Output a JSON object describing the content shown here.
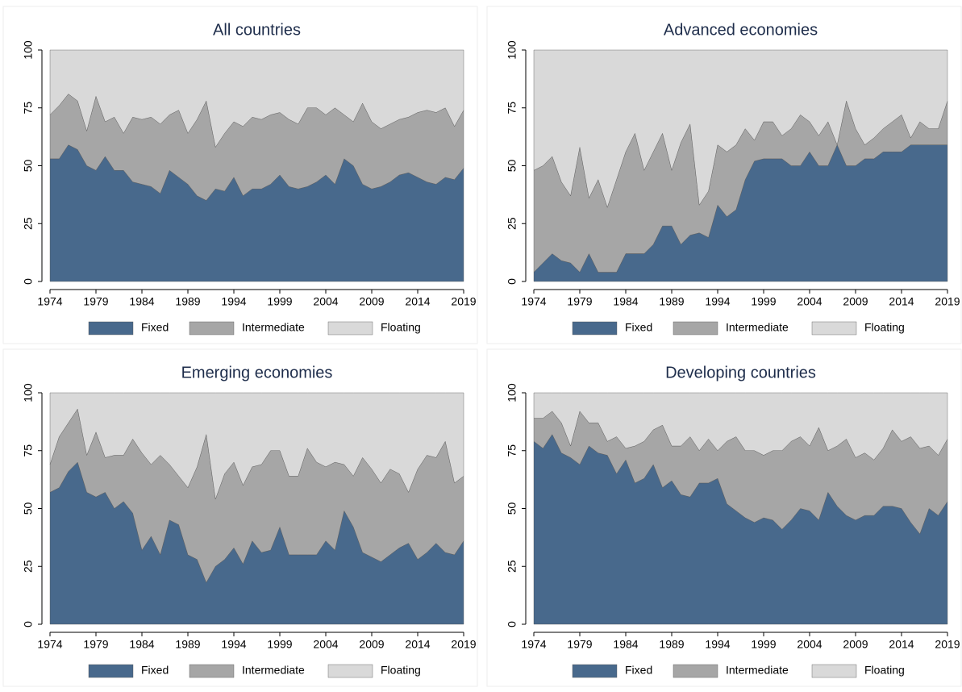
{
  "chart_data": [
    {
      "type": "area",
      "title": "All countries",
      "x": [
        1974,
        1975,
        1976,
        1977,
        1978,
        1979,
        1980,
        1981,
        1982,
        1983,
        1984,
        1985,
        1986,
        1987,
        1988,
        1989,
        1990,
        1991,
        1992,
        1993,
        1994,
        1995,
        1996,
        1997,
        1998,
        1999,
        2000,
        2001,
        2002,
        2003,
        2004,
        2005,
        2006,
        2007,
        2008,
        2009,
        2010,
        2011,
        2012,
        2013,
        2014,
        2015,
        2016,
        2017,
        2018,
        2019
      ],
      "series": [
        {
          "name": "Fixed",
          "color": "#48698c",
          "values": [
            53,
            53,
            59,
            57,
            50,
            48,
            54,
            48,
            48,
            43,
            42,
            41,
            38,
            48,
            45,
            42,
            37,
            35,
            40,
            39,
            45,
            37,
            40,
            40,
            42,
            46,
            41,
            40,
            41,
            43,
            46,
            42,
            53,
            50,
            42,
            40,
            41,
            43,
            46,
            47,
            45,
            43,
            42,
            45,
            44,
            49
          ]
        },
        {
          "name": "Intermediate",
          "color": "#a6a6a6",
          "values": [
            19,
            23,
            22,
            21,
            15,
            32,
            15,
            23,
            16,
            28,
            28,
            30,
            30,
            24,
            29,
            22,
            33,
            43,
            18,
            25,
            24,
            30,
            31,
            30,
            30,
            27,
            29,
            28,
            34,
            32,
            26,
            33,
            19,
            19,
            35,
            29,
            25,
            25,
            24,
            24,
            28,
            31,
            31,
            30,
            23,
            25
          ]
        },
        {
          "name": "Floating",
          "color": "#d9d9d9",
          "values": [
            28,
            24,
            19,
            22,
            35,
            20,
            31,
            29,
            36,
            29,
            30,
            29,
            32,
            28,
            26,
            36,
            30,
            22,
            42,
            36,
            31,
            33,
            29,
            30,
            28,
            27,
            30,
            32,
            25,
            25,
            28,
            25,
            28,
            31,
            23,
            31,
            34,
            32,
            30,
            29,
            27,
            26,
            27,
            25,
            33,
            26
          ]
        }
      ],
      "xlim": [
        1974,
        2019
      ],
      "xticks": [
        1974,
        1979,
        1984,
        1989,
        1994,
        1999,
        2004,
        2009,
        2014,
        2019
      ],
      "ylim": [
        0,
        100
      ],
      "yticks": [
        0,
        25,
        50,
        75,
        100
      ],
      "stacked": true
    },
    {
      "type": "area",
      "title": "Advanced economies",
      "x": [
        1974,
        1975,
        1976,
        1977,
        1978,
        1979,
        1980,
        1981,
        1982,
        1983,
        1984,
        1985,
        1986,
        1987,
        1988,
        1989,
        1990,
        1991,
        1992,
        1993,
        1994,
        1995,
        1996,
        1997,
        1998,
        1999,
        2000,
        2001,
        2002,
        2003,
        2004,
        2005,
        2006,
        2007,
        2008,
        2009,
        2010,
        2011,
        2012,
        2013,
        2014,
        2015,
        2016,
        2017,
        2018,
        2019
      ],
      "series": [
        {
          "name": "Fixed",
          "color": "#48698c",
          "values": [
            4,
            8,
            12,
            9,
            8,
            4,
            12,
            4,
            4,
            4,
            12,
            12,
            12,
            16,
            24,
            24,
            16,
            20,
            21,
            19,
            33,
            28,
            31,
            44,
            52,
            53,
            53,
            53,
            50,
            50,
            56,
            50,
            50,
            59,
            50,
            50,
            53,
            53,
            56,
            56,
            56,
            59,
            59,
            59,
            59,
            59
          ]
        },
        {
          "name": "Intermediate",
          "color": "#a6a6a6",
          "values": [
            44,
            42,
            42,
            34,
            29,
            54,
            24,
            40,
            28,
            40,
            44,
            52,
            36,
            40,
            40,
            24,
            44,
            48,
            12,
            20,
            26,
            28,
            28,
            22,
            9,
            16,
            16,
            10,
            16,
            22,
            13,
            13,
            19,
            0,
            28,
            16,
            6,
            9,
            10,
            13,
            16,
            3,
            10,
            7,
            7,
            19
          ]
        },
        {
          "name": "Floating",
          "color": "#d9d9d9",
          "values": [
            52,
            50,
            46,
            57,
            63,
            42,
            64,
            56,
            68,
            56,
            44,
            36,
            52,
            44,
            36,
            52,
            40,
            32,
            67,
            61,
            41,
            44,
            41,
            34,
            39,
            31,
            31,
            37,
            34,
            28,
            31,
            37,
            31,
            41,
            22,
            34,
            41,
            38,
            34,
            31,
            28,
            38,
            31,
            34,
            34,
            22
          ]
        }
      ],
      "xlim": [
        1974,
        2019
      ],
      "xticks": [
        1974,
        1979,
        1984,
        1989,
        1994,
        1999,
        2004,
        2009,
        2014,
        2019
      ],
      "ylim": [
        0,
        100
      ],
      "yticks": [
        0,
        25,
        50,
        75,
        100
      ],
      "stacked": true
    },
    {
      "type": "area",
      "title": "Emerging economies",
      "x": [
        1974,
        1975,
        1976,
        1977,
        1978,
        1979,
        1980,
        1981,
        1982,
        1983,
        1984,
        1985,
        1986,
        1987,
        1988,
        1989,
        1990,
        1991,
        1992,
        1993,
        1994,
        1995,
        1996,
        1997,
        1998,
        1999,
        2000,
        2001,
        2002,
        2003,
        2004,
        2005,
        2006,
        2007,
        2008,
        2009,
        2010,
        2011,
        2012,
        2013,
        2014,
        2015,
        2016,
        2017,
        2018,
        2019
      ],
      "series": [
        {
          "name": "Fixed",
          "color": "#48698c",
          "values": [
            57,
            59,
            66,
            70,
            57,
            55,
            57,
            50,
            53,
            48,
            32,
            38,
            30,
            45,
            43,
            30,
            28,
            18,
            25,
            28,
            33,
            26,
            36,
            31,
            32,
            42,
            30,
            30,
            30,
            30,
            36,
            32,
            49,
            42,
            31,
            29,
            27,
            30,
            33,
            35,
            28,
            31,
            35,
            31,
            30,
            36
          ]
        },
        {
          "name": "Intermediate",
          "color": "#a6a6a6",
          "values": [
            12,
            22,
            21,
            23,
            16,
            28,
            15,
            23,
            20,
            32,
            42,
            31,
            43,
            24,
            21,
            29,
            40,
            64,
            29,
            37,
            37,
            34,
            32,
            38,
            43,
            33,
            34,
            34,
            46,
            40,
            32,
            38,
            20,
            22,
            41,
            38,
            34,
            37,
            32,
            22,
            39,
            42,
            37,
            48,
            31,
            28
          ]
        },
        {
          "name": "Floating",
          "color": "#d9d9d9",
          "values": [
            31,
            19,
            13,
            7,
            27,
            17,
            28,
            27,
            27,
            20,
            26,
            31,
            27,
            31,
            36,
            41,
            32,
            18,
            46,
            35,
            30,
            40,
            32,
            31,
            25,
            25,
            36,
            36,
            24,
            30,
            32,
            30,
            31,
            36,
            28,
            33,
            39,
            33,
            35,
            43,
            33,
            27,
            28,
            21,
            39,
            36
          ]
        }
      ],
      "xlim": [
        1974,
        2019
      ],
      "xticks": [
        1974,
        1979,
        1984,
        1989,
        1994,
        1999,
        2004,
        2009,
        2014,
        2019
      ],
      "ylim": [
        0,
        100
      ],
      "yticks": [
        0,
        25,
        50,
        75,
        100
      ],
      "stacked": true
    },
    {
      "type": "area",
      "title": "Developing countries",
      "x": [
        1974,
        1975,
        1976,
        1977,
        1978,
        1979,
        1980,
        1981,
        1982,
        1983,
        1984,
        1985,
        1986,
        1987,
        1988,
        1989,
        1990,
        1991,
        1992,
        1993,
        1994,
        1995,
        1996,
        1997,
        1998,
        1999,
        2000,
        2001,
        2002,
        2003,
        2004,
        2005,
        2006,
        2007,
        2008,
        2009,
        2010,
        2011,
        2012,
        2013,
        2014,
        2015,
        2016,
        2017,
        2018,
        2019
      ],
      "series": [
        {
          "name": "Fixed",
          "color": "#48698c",
          "values": [
            79,
            76,
            82,
            74,
            72,
            69,
            77,
            74,
            73,
            65,
            71,
            61,
            63,
            69,
            59,
            62,
            56,
            55,
            61,
            61,
            63,
            52,
            49,
            46,
            44,
            46,
            45,
            41,
            45,
            50,
            49,
            45,
            57,
            51,
            47,
            45,
            47,
            47,
            51,
            51,
            50,
            44,
            39,
            50,
            47,
            53
          ]
        },
        {
          "name": "Intermediate",
          "color": "#a6a6a6",
          "values": [
            10,
            13,
            10,
            13,
            5,
            23,
            10,
            13,
            6,
            16,
            5,
            16,
            16,
            15,
            27,
            15,
            21,
            26,
            14,
            19,
            12,
            27,
            32,
            29,
            31,
            27,
            30,
            34,
            34,
            31,
            28,
            40,
            18,
            26,
            33,
            27,
            27,
            24,
            25,
            33,
            29,
            37,
            37,
            27,
            26,
            27
          ]
        },
        {
          "name": "Floating",
          "color": "#d9d9d9",
          "values": [
            11,
            11,
            8,
            13,
            23,
            8,
            13,
            13,
            21,
            19,
            24,
            23,
            21,
            16,
            14,
            23,
            23,
            19,
            25,
            20,
            25,
            21,
            19,
            25,
            25,
            27,
            25,
            25,
            21,
            19,
            23,
            15,
            25,
            23,
            20,
            28,
            26,
            29,
            24,
            16,
            21,
            19,
            24,
            23,
            27,
            20
          ]
        }
      ],
      "xlim": [
        1974,
        2019
      ],
      "xticks": [
        1974,
        1979,
        1984,
        1989,
        1994,
        1999,
        2004,
        2009,
        2014,
        2019
      ],
      "ylim": [
        0,
        100
      ],
      "yticks": [
        0,
        25,
        50,
        75,
        100
      ],
      "stacked": true
    }
  ]
}
